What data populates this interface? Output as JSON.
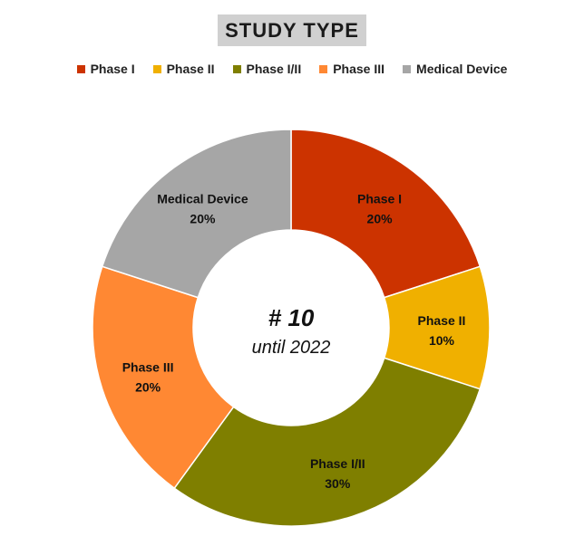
{
  "chart_data": {
    "type": "donut",
    "title": "STUDY TYPE",
    "categories": [
      "Phase I",
      "Phase II",
      "Phase I/II",
      "Phase III",
      "Medical Device"
    ],
    "values": [
      20,
      10,
      30,
      20,
      20
    ],
    "labels": [
      "20%",
      "10%",
      "30%",
      "20%",
      "20%"
    ],
    "colors": [
      "#cc3300",
      "#f0b000",
      "#7f7f00",
      "#ff8833",
      "#a6a6a6"
    ],
    "legend_position": "top",
    "center_text": "# 10",
    "center_subtext": "until 2022"
  }
}
